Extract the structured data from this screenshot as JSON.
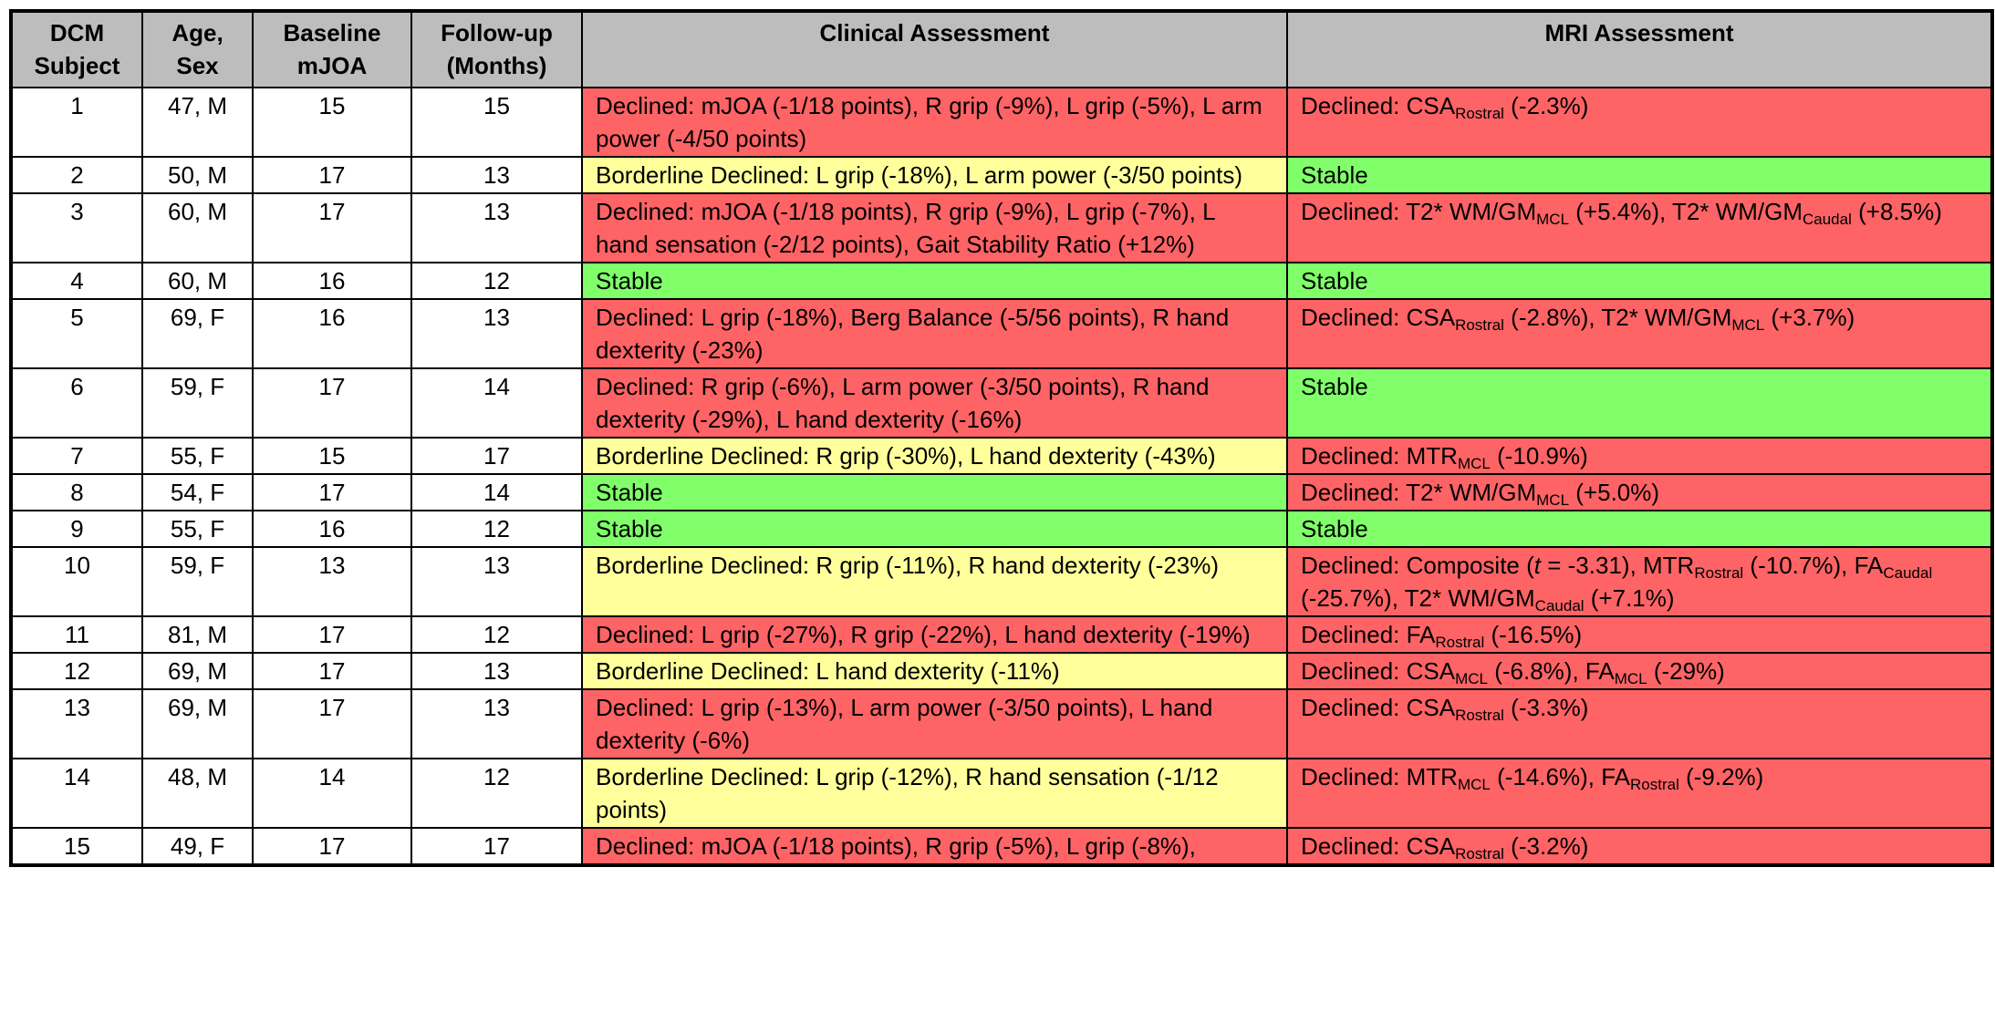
{
  "header": [
    [
      "DCM",
      "Subject"
    ],
    [
      "Age,",
      "Sex"
    ],
    [
      "Baseline",
      "mJOA"
    ],
    [
      "Follow-up",
      "(Months)"
    ],
    [
      "Clinical Assessment"
    ],
    [
      "MRI Assessment"
    ]
  ],
  "header_color": "#bdbdbd",
  "rows": [
    {
      "subject": 1,
      "age_sex": "47, M",
      "mjoa": 15,
      "followup": 15,
      "clinical": {
        "text": "Declined: mJOA (-1/18 points), R grip (-9%), L grip (-5%), L arm power (-4/50 points)",
        "color": "#fe6365"
      },
      "mri": {
        "parts": [
          "Declined: CSA",
          {
            "sub": "Rostral"
          },
          " (-2.3%)"
        ],
        "color": "#fe6365"
      }
    },
    {
      "subject": 2,
      "age_sex": "50, M",
      "mjoa": 17,
      "followup": 13,
      "clinical": {
        "text": "Borderline Declined: L grip (-18%), L arm power (-3/50 points)",
        "color": "#ffff9c"
      },
      "mri": {
        "parts": [
          "Stable"
        ],
        "color": "#80ff6a"
      }
    },
    {
      "subject": 3,
      "age_sex": "60, M",
      "mjoa": 17,
      "followup": 13,
      "clinical": {
        "text": "Declined: mJOA (-1/18 points), R grip (-9%), L grip (-7%), L hand sensation (-2/12 points), Gait Stability Ratio (+12%)",
        "color": "#fe6365"
      },
      "mri": {
        "parts": [
          "Declined: T2* WM/GM",
          {
            "sub": "MCL"
          },
          " (+5.4%), T2* WM/GM",
          {
            "sub": "Caudal"
          },
          " (+8.5%)"
        ],
        "color": "#fe6365"
      }
    },
    {
      "subject": 4,
      "age_sex": "60, M",
      "mjoa": 16,
      "followup": 12,
      "clinical": {
        "text": "Stable",
        "color": "#80ff6a"
      },
      "mri": {
        "parts": [
          "Stable"
        ],
        "color": "#80ff6a"
      }
    },
    {
      "subject": 5,
      "age_sex": "69, F",
      "mjoa": 16,
      "followup": 13,
      "clinical": {
        "text": "Declined: L grip (-18%), Berg Balance (-5/56 points), R hand dexterity (-23%)",
        "color": "#fe6365"
      },
      "mri": {
        "parts": [
          "Declined: CSA",
          {
            "sub": "Rostral"
          },
          " (-2.8%), T2* WM/GM",
          {
            "sub": "MCL"
          },
          " (+3.7%)"
        ],
        "color": "#fe6365"
      }
    },
    {
      "subject": 6,
      "age_sex": "59, F",
      "mjoa": 17,
      "followup": 14,
      "clinical": {
        "text": "Declined: R grip (-6%), L arm power (-3/50 points), R hand dexterity (-29%), L hand dexterity (-16%)",
        "color": "#fe6365"
      },
      "mri": {
        "parts": [
          "Stable"
        ],
        "color": "#80ff6a"
      }
    },
    {
      "subject": 7,
      "age_sex": "55, F",
      "mjoa": 15,
      "followup": 17,
      "clinical": {
        "text": "Borderline Declined: R grip (-30%), L hand dexterity (-43%)",
        "color": "#ffff9c"
      },
      "mri": {
        "parts": [
          "Declined: MTR",
          {
            "sub": "MCL"
          },
          " (-10.9%)"
        ],
        "color": "#fe6365"
      }
    },
    {
      "subject": 8,
      "age_sex": "54, F",
      "mjoa": 17,
      "followup": 14,
      "clinical": {
        "text": "Stable",
        "color": "#80ff6a"
      },
      "mri": {
        "parts": [
          "Declined: T2* WM/GM",
          {
            "sub": "MCL"
          },
          " (+5.0%)"
        ],
        "color": "#fe6365"
      }
    },
    {
      "subject": 9,
      "age_sex": "55, F",
      "mjoa": 16,
      "followup": 12,
      "clinical": {
        "text": "Stable",
        "color": "#80ff6a"
      },
      "mri": {
        "parts": [
          "Stable"
        ],
        "color": "#80ff6a"
      }
    },
    {
      "subject": 10,
      "age_sex": "59, F",
      "mjoa": 13,
      "followup": 13,
      "clinical": {
        "text": "Borderline Declined: R grip (-11%), R hand dexterity (-23%)",
        "color": "#ffff9c"
      },
      "mri": {
        "parts": [
          "Declined: Composite (",
          {
            "italic": "t"
          },
          " = -3.31), MTR",
          {
            "sub": "Rostral"
          },
          " (-10.7%), FA",
          {
            "sub": "Caudal"
          },
          " (-25.7%), T2* WM/GM",
          {
            "sub": "Caudal"
          },
          " (+7.1%)"
        ],
        "color": "#fe6365"
      }
    },
    {
      "subject": 11,
      "age_sex": "81, M",
      "mjoa": 17,
      "followup": 12,
      "clinical": {
        "text": "Declined: L grip (-27%), R grip (-22%), L hand dexterity (-19%)",
        "color": "#fe6365"
      },
      "mri": {
        "parts": [
          "Declined: FA",
          {
            "sub": "Rostral"
          },
          " (-16.5%)"
        ],
        "color": "#fe6365"
      }
    },
    {
      "subject": 12,
      "age_sex": "69, M",
      "mjoa": 17,
      "followup": 13,
      "clinical": {
        "text": "Borderline Declined: L hand dexterity (-11%)",
        "color": "#ffff9c"
      },
      "mri": {
        "parts": [
          "Declined: CSA",
          {
            "sub": "MCL"
          },
          " (-6.8%), FA",
          {
            "sub": "MCL"
          },
          " (-29%)"
        ],
        "color": "#fe6365"
      }
    },
    {
      "subject": 13,
      "age_sex": "69, M",
      "mjoa": 17,
      "followup": 13,
      "clinical": {
        "text": "Declined: L grip (-13%), L arm power (-3/50 points), L hand dexterity (-6%)",
        "color": "#fe6365"
      },
      "mri": {
        "parts": [
          "Declined: CSA",
          {
            "sub": "Rostral"
          },
          " (-3.3%)"
        ],
        "color": "#fe6365"
      }
    },
    {
      "subject": 14,
      "age_sex": "48, M",
      "mjoa": 14,
      "followup": 12,
      "clinical": {
        "text": "Borderline Declined: L grip (-12%), R hand sensation (-1/12 points)",
        "color": "#ffff9c"
      },
      "mri": {
        "parts": [
          "Declined: MTR",
          {
            "sub": "MCL"
          },
          " (-14.6%), FA",
          {
            "sub": "Rostral"
          },
          " (-9.2%)"
        ],
        "color": "#fe6365"
      }
    },
    {
      "subject": 15,
      "age_sex": "49, F",
      "mjoa": 17,
      "followup": 17,
      "clinical": {
        "text": "Declined: mJOA (-1/18 points), R grip (-5%), L grip (-8%),",
        "color": "#fe6365"
      },
      "mri": {
        "parts": [
          "Declined: CSA",
          {
            "sub": "Rostral"
          },
          " (-3.2%)"
        ],
        "color": "#fe6365"
      }
    }
  ]
}
